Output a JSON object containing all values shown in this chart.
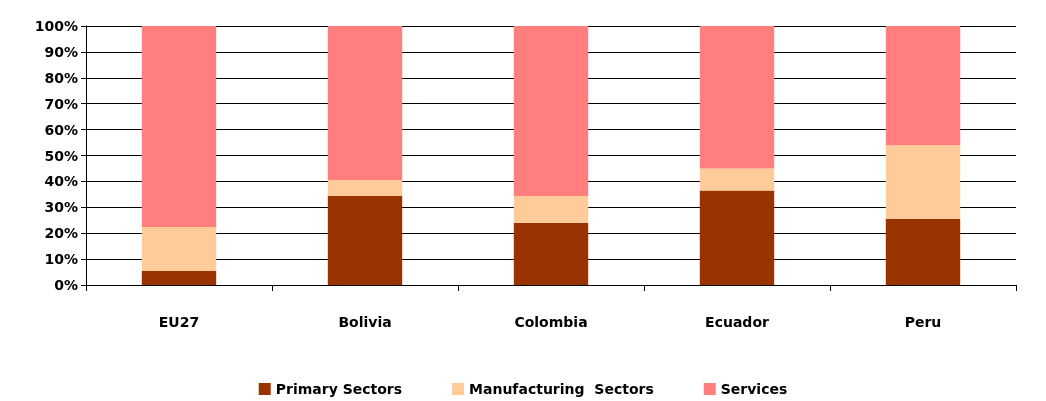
{
  "chart_data": {
    "type": "bar",
    "stacked": true,
    "categories": [
      "EU27",
      "Bolivia",
      "Colombia",
      "Ecuador",
      "Peru"
    ],
    "series": [
      {
        "name": "Primary Sectors",
        "color": "#993300",
        "values": [
          5.4,
          34.4,
          24,
          36.5,
          25.5
        ]
      },
      {
        "name": "Manufacturing  Sectors",
        "color": "#ffcc99",
        "values": [
          17,
          6.1,
          10.4,
          8.5,
          28.5
        ]
      },
      {
        "name": "Services",
        "color": "#ff7f7f",
        "values": [
          77.6,
          59.5,
          65.6,
          55,
          46
        ]
      }
    ],
    "ylim": [
      0,
      100
    ],
    "yticks": [
      {
        "value": 0,
        "label": "0%"
      },
      {
        "value": 10,
        "label": "10%"
      },
      {
        "value": 20,
        "label": "20%"
      },
      {
        "value": 30,
        "label": "30%"
      },
      {
        "value": 40,
        "label": "40%"
      },
      {
        "value": 50,
        "label": "50%"
      },
      {
        "value": 60,
        "label": "60%"
      },
      {
        "value": 70,
        "label": "70%"
      },
      {
        "value": 80,
        "label": "80%"
      },
      {
        "value": 90,
        "label": "90%"
      },
      {
        "value": 100,
        "label": "100%"
      }
    ],
    "grid": "y",
    "legend": "bottom"
  }
}
